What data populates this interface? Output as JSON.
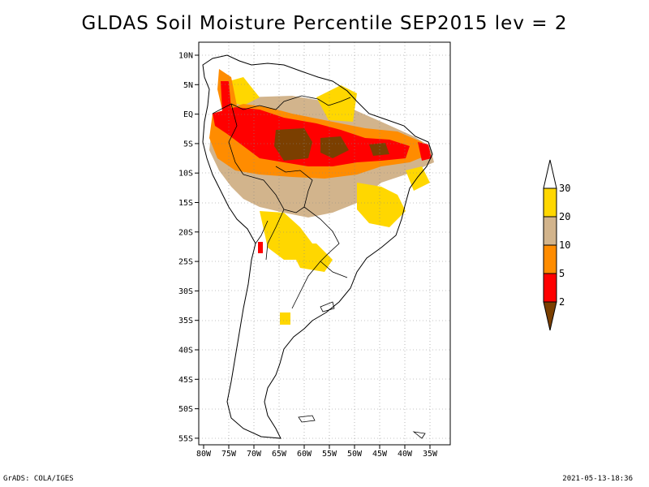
{
  "title": "GLDAS Soil Moisture Percentile SEP2015 lev = 2",
  "map": {
    "region": "South America",
    "lon_range": [
      -80,
      -32
    ],
    "lat_range": [
      -56,
      12
    ],
    "lon_ticks": [
      "80W",
      "75W",
      "70W",
      "65W",
      "60W",
      "55W",
      "50W",
      "45W",
      "40W",
      "35W"
    ],
    "lat_ticks": [
      "10N",
      "5N",
      "EQ",
      "5S",
      "10S",
      "15S",
      "20S",
      "25S",
      "30S",
      "35S",
      "40S",
      "45S",
      "50S",
      "55S"
    ],
    "grid": "dotted",
    "colorbar": {
      "levels": [
        "2",
        "5",
        "10",
        "20",
        "30"
      ],
      "colors": [
        "#7b3f00",
        "#ff0000",
        "#ff8c00",
        "#d2b48c",
        "#ffd700",
        "#ffffff"
      ]
    }
  },
  "footer": {
    "left": "GrADS: COLA/IGES",
    "right": "2021-05-13-18:36"
  }
}
